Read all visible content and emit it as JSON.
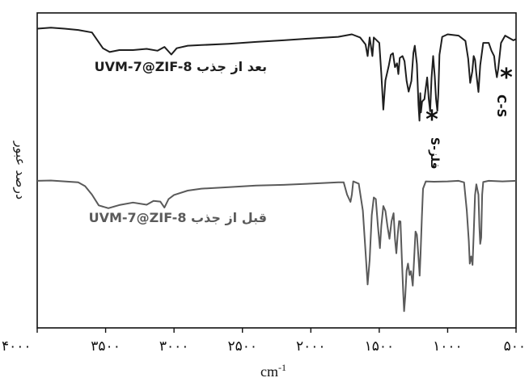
{
  "chart_data": {
    "type": "line",
    "title": "",
    "xlabel": "cm",
    "xlabel_superscript": "-1",
    "ylabel": "درصد عبور",
    "xlim": [
      4000,
      500
    ],
    "x_reversed": true,
    "xticks": [
      4000,
      3500,
      3000,
      2500,
      2000,
      1500,
      1000,
      500
    ],
    "xtick_labels": [
      "۴۰۰۰",
      "۳۵۰۰",
      "۳۰۰۰",
      "۲۵۰۰",
      "۲۰۰۰",
      "۱۵۰۰",
      "۱۰۰۰",
      "۵۰۰"
    ],
    "ylim": [
      0,
      100
    ],
    "yticks_shown": false,
    "grid": false,
    "series": [
      {
        "name": "UVM-7@ZIF-8 بعد از جذب",
        "color": "#1e1e1e",
        "points": [
          [
            4000,
            95.0
          ],
          [
            3900,
            95.3
          ],
          [
            3800,
            95.0
          ],
          [
            3700,
            94.6
          ],
          [
            3600,
            93.8
          ],
          [
            3520,
            88.8
          ],
          [
            3470,
            87.6
          ],
          [
            3400,
            88.2
          ],
          [
            3300,
            88.2
          ],
          [
            3200,
            88.6
          ],
          [
            3120,
            88.0
          ],
          [
            3070,
            89.2
          ],
          [
            3020,
            86.8
          ],
          [
            2980,
            88.8
          ],
          [
            2900,
            89.6
          ],
          [
            2800,
            89.8
          ],
          [
            2600,
            90.2
          ],
          [
            2400,
            90.8
          ],
          [
            2200,
            91.3
          ],
          [
            2000,
            91.9
          ],
          [
            1800,
            92.4
          ],
          [
            1700,
            93.2
          ],
          [
            1640,
            92.2
          ],
          [
            1600,
            90.0
          ],
          [
            1585,
            86.3
          ],
          [
            1570,
            92.2
          ],
          [
            1550,
            86.3
          ],
          [
            1540,
            92.2
          ],
          [
            1500,
            90.5
          ],
          [
            1485,
            80.8
          ],
          [
            1470,
            69.3
          ],
          [
            1455,
            78.6
          ],
          [
            1430,
            83.3
          ],
          [
            1415,
            86.7
          ],
          [
            1400,
            87.2
          ],
          [
            1385,
            82.8
          ],
          [
            1370,
            84.0
          ],
          [
            1360,
            80.6
          ],
          [
            1350,
            85.7
          ],
          [
            1330,
            86.3
          ],
          [
            1315,
            84.7
          ],
          [
            1300,
            78.4
          ],
          [
            1285,
            75.0
          ],
          [
            1265,
            78.4
          ],
          [
            1250,
            87.3
          ],
          [
            1240,
            89.6
          ],
          [
            1225,
            83.8
          ],
          [
            1213,
            70.7
          ],
          [
            1206,
            65.8
          ],
          [
            1200,
            74.5
          ],
          [
            1195,
            68.4
          ],
          [
            1187,
            71.8
          ],
          [
            1180,
            72.2
          ],
          [
            1170,
            72.6
          ],
          [
            1160,
            76.2
          ],
          [
            1150,
            79.5
          ],
          [
            1138,
            72.6
          ],
          [
            1128,
            68.8
          ],
          [
            1118,
            79.3
          ],
          [
            1106,
            86.3
          ],
          [
            1094,
            79.8
          ],
          [
            1085,
            72.6
          ],
          [
            1075,
            68.9
          ],
          [
            1068,
            74.4
          ],
          [
            1060,
            86.7
          ],
          [
            1040,
            92.4
          ],
          [
            1000,
            93.2
          ],
          [
            920,
            92.8
          ],
          [
            870,
            91.1
          ],
          [
            850,
            85.5
          ],
          [
            835,
            77.8
          ],
          [
            820,
            81.4
          ],
          [
            810,
            86.3
          ],
          [
            800,
            85.1
          ],
          [
            790,
            80.7
          ],
          [
            775,
            74.9
          ],
          [
            762,
            83.4
          ],
          [
            740,
            90.5
          ],
          [
            700,
            90.5
          ],
          [
            680,
            88.0
          ],
          [
            660,
            86.3
          ],
          [
            650,
            82.3
          ],
          [
            640,
            79.6
          ],
          [
            630,
            82.3
          ],
          [
            610,
            90.5
          ],
          [
            580,
            92.8
          ],
          [
            520,
            91.3
          ],
          [
            500,
            91.7
          ]
        ]
      },
      {
        "name": "UVM-7@ZIF-8 قبل از جذب",
        "color": "#5a5a5a",
        "points": [
          [
            4000,
            46.7
          ],
          [
            3900,
            46.8
          ],
          [
            3800,
            46.5
          ],
          [
            3700,
            46.2
          ],
          [
            3650,
            45.0
          ],
          [
            3600,
            42.3
          ],
          [
            3550,
            38.9
          ],
          [
            3480,
            38.0
          ],
          [
            3400,
            39.0
          ],
          [
            3300,
            39.8
          ],
          [
            3200,
            39.1
          ],
          [
            3150,
            40.3
          ],
          [
            3100,
            40.1
          ],
          [
            3070,
            38.2
          ],
          [
            3040,
            40.9
          ],
          [
            3000,
            42.2
          ],
          [
            2900,
            43.6
          ],
          [
            2800,
            44.2
          ],
          [
            2600,
            44.7
          ],
          [
            2400,
            45.2
          ],
          [
            2200,
            45.4
          ],
          [
            2000,
            45.8
          ],
          [
            1800,
            46.2
          ],
          [
            1760,
            46.2
          ],
          [
            1735,
            42.3
          ],
          [
            1710,
            40.0
          ],
          [
            1700,
            42.3
          ],
          [
            1690,
            46.5
          ],
          [
            1650,
            45.8
          ],
          [
            1620,
            37.2
          ],
          [
            1600,
            24.2
          ],
          [
            1585,
            13.8
          ],
          [
            1570,
            21.6
          ],
          [
            1555,
            35.8
          ],
          [
            1540,
            41.4
          ],
          [
            1525,
            40.9
          ],
          [
            1510,
            32.4
          ],
          [
            1495,
            25.3
          ],
          [
            1485,
            32.3
          ],
          [
            1470,
            38.7
          ],
          [
            1455,
            37.1
          ],
          [
            1440,
            32.3
          ],
          [
            1425,
            28.3
          ],
          [
            1410,
            33.9
          ],
          [
            1395,
            36.4
          ],
          [
            1385,
            28.3
          ],
          [
            1375,
            23.7
          ],
          [
            1365,
            29.7
          ],
          [
            1355,
            33.9
          ],
          [
            1345,
            33.8
          ],
          [
            1335,
            22.0
          ],
          [
            1325,
            11.2
          ],
          [
            1318,
            5.3
          ],
          [
            1310,
            10.0
          ],
          [
            1300,
            18.2
          ],
          [
            1290,
            20.4
          ],
          [
            1278,
            16.8
          ],
          [
            1268,
            18.0
          ],
          [
            1255,
            13.4
          ],
          [
            1245,
            22.0
          ],
          [
            1235,
            30.6
          ],
          [
            1225,
            29.6
          ],
          [
            1215,
            23.4
          ],
          [
            1205,
            16.6
          ],
          [
            1198,
            23.2
          ],
          [
            1188,
            35.4
          ],
          [
            1180,
            44.2
          ],
          [
            1160,
            46.5
          ],
          [
            1100,
            46.4
          ],
          [
            1000,
            46.5
          ],
          [
            920,
            46.7
          ],
          [
            880,
            46.2
          ],
          [
            860,
            37.2
          ],
          [
            845,
            27.5
          ],
          [
            838,
            20.4
          ],
          [
            828,
            22.7
          ],
          [
            818,
            20.0
          ],
          [
            810,
            29.6
          ],
          [
            800,
            42.2
          ],
          [
            790,
            45.6
          ],
          [
            775,
            42.3
          ],
          [
            768,
            32.0
          ],
          [
            762,
            26.7
          ],
          [
            755,
            28.7
          ],
          [
            748,
            42.3
          ],
          [
            740,
            46.3
          ],
          [
            700,
            46.7
          ],
          [
            600,
            46.5
          ],
          [
            500,
            46.7
          ]
        ]
      }
    ],
    "annotations": [
      "S-فلز",
      "C-S",
      "*",
      "*"
    ]
  }
}
